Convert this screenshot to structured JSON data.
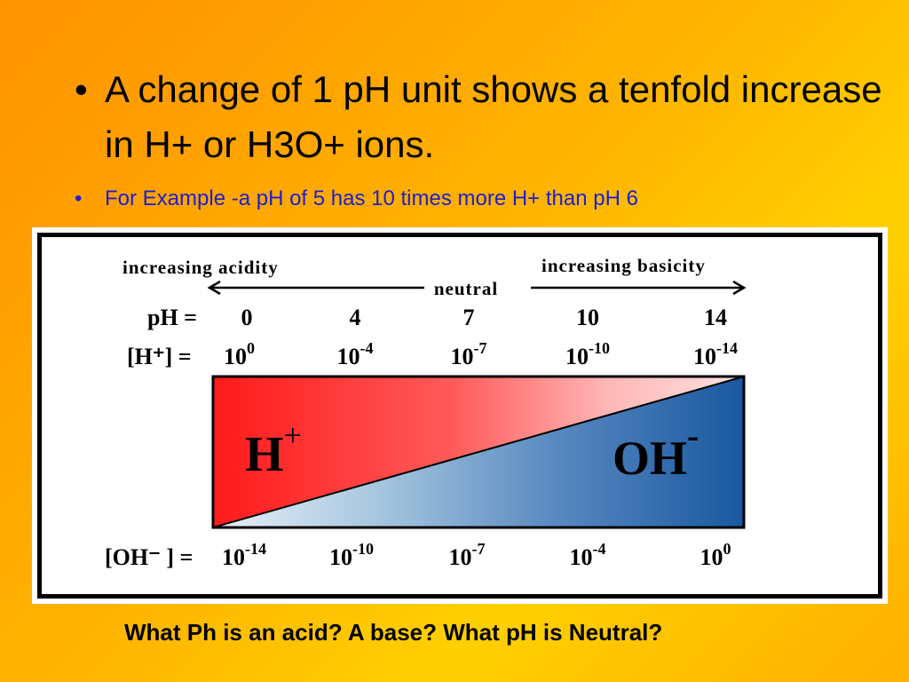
{
  "slide": {
    "bullets": [
      {
        "marker": "•",
        "text": "A change of 1 pH unit shows a tenfold increase in H+ or H3O+ ions."
      },
      {
        "marker": "•",
        "text": "For Example -a pH of 5 has 10 times more H+ than pH 6"
      }
    ],
    "question": "What Ph is an acid?  A base?  What pH is Neutral?"
  },
  "diagram": {
    "arrow_left_label": "increasing acidity",
    "arrow_right_label": "increasing basicity",
    "neutral_label": "neutral",
    "ph_row_label": "pH =",
    "h_row_label": "[H⁺] =",
    "oh_row_label": "[OH⁻ ] =",
    "base": "10",
    "columns": [
      {
        "ph": "0",
        "h_exp": "0",
        "oh_exp": "-14"
      },
      {
        "ph": "4",
        "h_exp": "-4",
        "oh_exp": "-10"
      },
      {
        "ph": "7",
        "h_exp": "-7",
        "oh_exp": "-7"
      },
      {
        "ph": "10",
        "h_exp": "-10",
        "oh_exp": "-4"
      },
      {
        "ph": "14",
        "h_exp": "-14",
        "oh_exp": "0"
      }
    ],
    "h_ion": {
      "base": "H",
      "sup": "+"
    },
    "oh_ion": {
      "base": "OH",
      "sup": "-"
    },
    "colors": {
      "acid": "#ff2020",
      "base": "#2060a8",
      "line": "#000000"
    }
  }
}
